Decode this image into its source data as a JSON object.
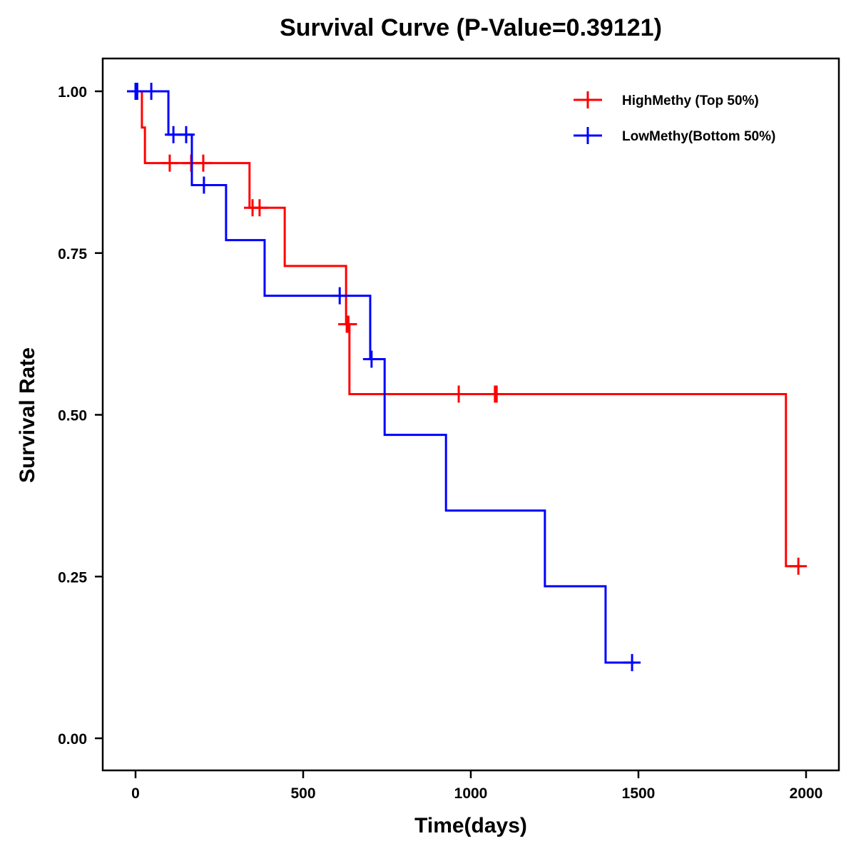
{
  "chart_data": {
    "type": "line",
    "subtype": "kaplan-meier-step",
    "title": "Survival Curve (P-Value=0.39121)",
    "xlabel": "Time(days)",
    "ylabel": "Survival Rate",
    "xlim": [
      -80,
      2080
    ],
    "ylim": [
      -0.05,
      1.05
    ],
    "xticks": [
      0,
      500,
      1000,
      1500,
      2000
    ],
    "xtick_labels": [
      "0",
      "500",
      "1000",
      "1500",
      "2000"
    ],
    "yticks": [
      0,
      0.25,
      0.5,
      0.75,
      1.0
    ],
    "ytick_labels": [
      "0.00",
      "0.25",
      "0.50",
      "0.75",
      "1.00"
    ],
    "grid": false,
    "legend_position": "top-right",
    "series": [
      {
        "name": "HighMethy (Top 50%)",
        "color": "#ff0000",
        "steps": [
          {
            "t": 0,
            "s": 1.0
          },
          {
            "t": 19,
            "s": 0.944
          },
          {
            "t": 28,
            "s": 0.889
          },
          {
            "t": 340,
            "s": 0.82
          },
          {
            "t": 445,
            "s": 0.73
          },
          {
            "t": 628,
            "s": 0.64
          },
          {
            "t": 638,
            "s": 0.532
          },
          {
            "t": 1940,
            "s": 0.266
          }
        ],
        "end_time": 1985,
        "censored": [
          {
            "t": 102,
            "s": 0.889
          },
          {
            "t": 166,
            "s": 0.889
          },
          {
            "t": 202,
            "s": 0.889
          },
          {
            "t": 349,
            "s": 0.82
          },
          {
            "t": 370,
            "s": 0.82
          },
          {
            "t": 630,
            "s": 0.64
          },
          {
            "t": 635,
            "s": 0.64
          },
          {
            "t": 964,
            "s": 0.532
          },
          {
            "t": 1072,
            "s": 0.532
          },
          {
            "t": 1077,
            "s": 0.532
          },
          {
            "t": 1977,
            "s": 0.266
          }
        ]
      },
      {
        "name": "LowMethy(Bottom 50%)",
        "color": "#0000ff",
        "steps": [
          {
            "t": 0,
            "s": 1.0
          },
          {
            "t": 98,
            "s": 0.933
          },
          {
            "t": 168,
            "s": 0.855
          },
          {
            "t": 270,
            "s": 0.77
          },
          {
            "t": 385,
            "s": 0.684
          },
          {
            "t": 700,
            "s": 0.586
          },
          {
            "t": 743,
            "s": 0.469
          },
          {
            "t": 926,
            "s": 0.352
          },
          {
            "t": 1221,
            "s": 0.235
          },
          {
            "t": 1402,
            "s": 0.117
          }
        ],
        "end_time": 1490,
        "censored": [
          {
            "t": 0,
            "s": 1.0
          },
          {
            "t": 5,
            "s": 1.0
          },
          {
            "t": 47,
            "s": 1.0
          },
          {
            "t": 113,
            "s": 0.933
          },
          {
            "t": 151,
            "s": 0.933
          },
          {
            "t": 204,
            "s": 0.855
          },
          {
            "t": 609,
            "s": 0.684
          },
          {
            "t": 704,
            "s": 0.586
          },
          {
            "t": 1481,
            "s": 0.117
          }
        ]
      }
    ]
  }
}
